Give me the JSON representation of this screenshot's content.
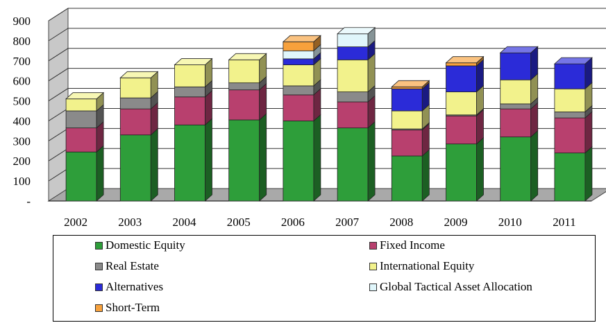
{
  "chart_data": {
    "type": "bar",
    "stacked": true,
    "three_d": true,
    "categories": [
      "2002",
      "2003",
      "2004",
      "2005",
      "2006",
      "2007",
      "2008",
      "2009",
      "2010",
      "2011"
    ],
    "y_ticks": [
      "-",
      "100",
      "200",
      "300",
      "400",
      "500",
      "600",
      "700",
      "800",
      "900"
    ],
    "ylim": [
      0,
      900
    ],
    "grid": true,
    "legend_position": "bottom",
    "series": [
      {
        "name": "Domestic Equity",
        "color": "#2e9e3a",
        "values": [
          245,
          330,
          380,
          405,
          400,
          365,
          225,
          285,
          320,
          240
        ]
      },
      {
        "name": "Fixed Income",
        "color": "#b8406e",
        "values": [
          120,
          130,
          140,
          150,
          130,
          130,
          130,
          140,
          140,
          175
        ]
      },
      {
        "name": "Real Estate",
        "color": "#8a8a8a",
        "values": [
          85,
          55,
          50,
          35,
          45,
          50,
          5,
          5,
          25,
          30
        ]
      },
      {
        "name": "International Equity",
        "color": "#f2f28c",
        "values": [
          60,
          100,
          110,
          115,
          105,
          160,
          90,
          115,
          120,
          115
        ]
      },
      {
        "name": "Alternatives",
        "color": "#2b2bd8",
        "values": [
          0,
          0,
          0,
          0,
          30,
          65,
          110,
          130,
          135,
          125
        ]
      },
      {
        "name": "Global Tactical Asset Allocation",
        "color": "#e0f6fb",
        "values": [
          0,
          0,
          0,
          0,
          40,
          65,
          0,
          0,
          0,
          0
        ]
      },
      {
        "name": "Short-Term",
        "color": "#f7a13c",
        "values": [
          0,
          0,
          0,
          0,
          45,
          0,
          10,
          15,
          0,
          0
        ]
      }
    ]
  }
}
